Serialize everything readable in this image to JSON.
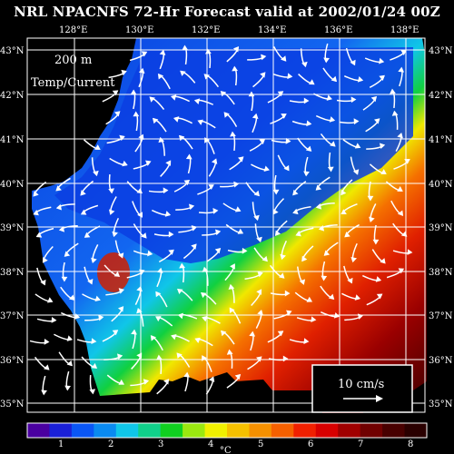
{
  "title": "NRL NPACNFS 72-Hr Forecast valid at 2002/01/24 00Z",
  "depth_label": "200 m",
  "field_label": "Temp/Current",
  "scale_label": "10 cm/s",
  "colorbar_unit": "°C",
  "lon_ticks": [
    "128°E",
    "130°E",
    "132°E",
    "134°E",
    "136°E",
    "138°E"
  ],
  "lat_ticks": [
    "43°N",
    "42°N",
    "41°N",
    "40°N",
    "39°N",
    "38°N",
    "37°N",
    "36°N",
    "35°N"
  ],
  "colorbar_ticks": [
    "1",
    "2",
    "3",
    "4",
    "5",
    "6",
    "7",
    "8"
  ],
  "colors": {
    "background": "#000000",
    "colorbar": [
      "#4a00a0",
      "#1a20d8",
      "#0a56f5",
      "#0a8af0",
      "#10c6e8",
      "#10d08a",
      "#10d020",
      "#9ae810",
      "#f0f000",
      "#f5c000",
      "#f59000",
      "#f56000",
      "#f02000",
      "#d80000",
      "#a00000",
      "#700000",
      "#480000",
      "#2a0000"
    ]
  }
}
